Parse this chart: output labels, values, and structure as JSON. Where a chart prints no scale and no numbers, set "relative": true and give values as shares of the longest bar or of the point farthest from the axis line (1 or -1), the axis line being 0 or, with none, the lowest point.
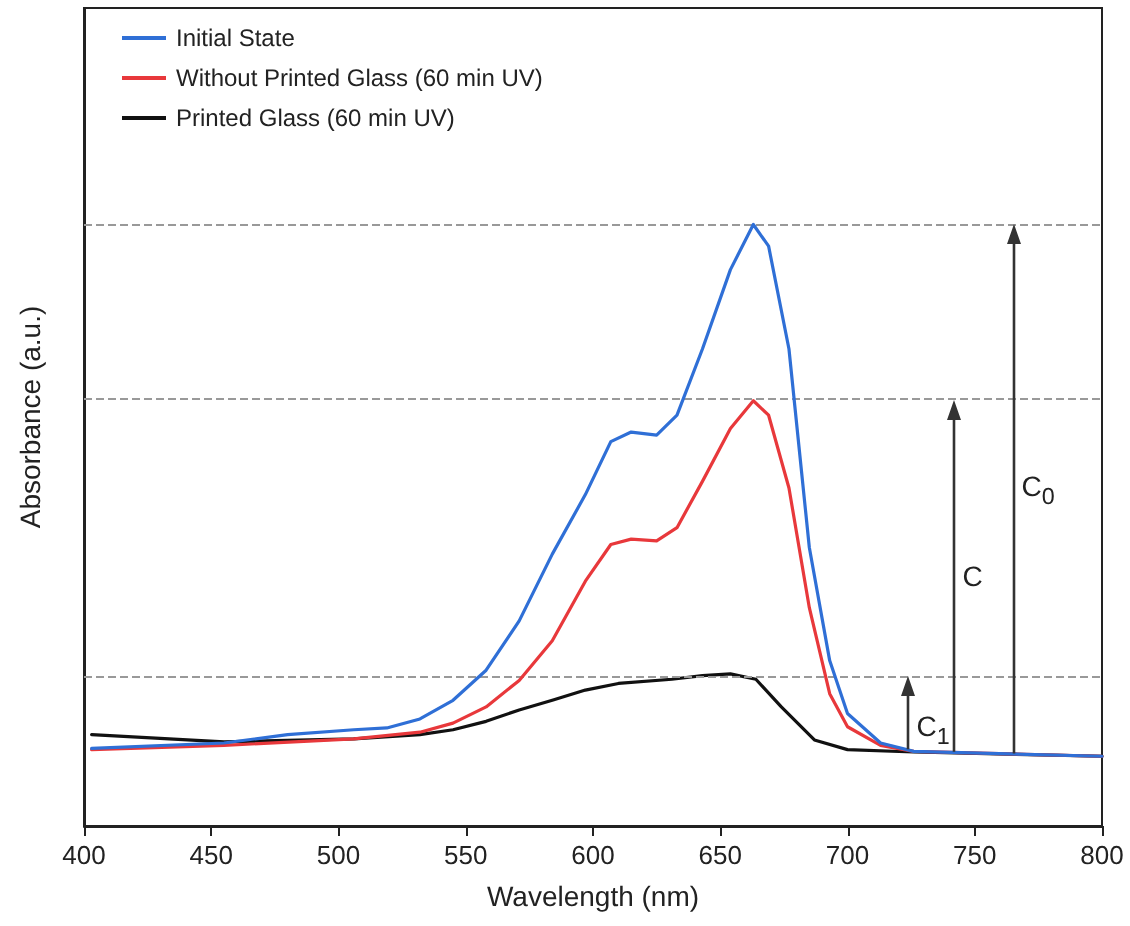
{
  "chart_data": {
    "type": "line",
    "relative": true,
    "xlabel": "Wavelength (nm)",
    "ylabel": "Absorbance (a.u.)",
    "xlim": [
      400,
      800
    ],
    "xticks": [
      400,
      450,
      500,
      550,
      600,
      650,
      700,
      750,
      800
    ],
    "tick_labels": "x",
    "grid": false,
    "legend": "top left",
    "marker": "none",
    "line_style": "solid",
    "series": [
      {
        "name": "Initial State",
        "color": "#2f6fd6",
        "x": [
          403,
          455,
          480,
          506,
          519,
          532,
          545,
          558,
          571,
          584,
          597,
          607,
          615,
          625,
          633,
          643,
          654,
          663,
          669,
          677,
          685,
          693,
          700,
          713,
          726,
          752,
          800
        ],
        "values": [
          0.129,
          0.138,
          0.152,
          0.16,
          0.163,
          0.178,
          0.209,
          0.259,
          0.341,
          0.452,
          0.551,
          0.639,
          0.655,
          0.65,
          0.683,
          0.793,
          0.925,
          1.0,
          0.964,
          0.793,
          0.463,
          0.275,
          0.187,
          0.138,
          0.124,
          0.121,
          0.116
        ]
      },
      {
        "name": "Without Printed Glass (60 min UV)",
        "color": "#e8383b",
        "x": [
          403,
          455,
          506,
          532,
          545,
          558,
          571,
          584,
          597,
          607,
          615,
          625,
          633,
          643,
          654,
          663,
          669,
          677,
          685,
          693,
          700,
          713,
          726,
          800
        ],
        "values": [
          0.127,
          0.134,
          0.145,
          0.156,
          0.171,
          0.198,
          0.242,
          0.308,
          0.407,
          0.468,
          0.477,
          0.474,
          0.496,
          0.573,
          0.661,
          0.707,
          0.683,
          0.562,
          0.363,
          0.22,
          0.165,
          0.134,
          0.124,
          0.116
        ]
      },
      {
        "name": "Printed Glass (60 min UV)",
        "color": "#111111",
        "x": [
          403,
          455,
          506,
          532,
          545,
          558,
          571,
          584,
          597,
          610,
          631,
          643,
          654,
          664,
          674,
          687,
          700,
          726,
          800
        ],
        "values": [
          0.152,
          0.14,
          0.145,
          0.152,
          0.16,
          0.174,
          0.193,
          0.209,
          0.226,
          0.237,
          0.244,
          0.25,
          0.253,
          0.244,
          0.198,
          0.143,
          0.127,
          0.123,
          0.116
        ]
      }
    ],
    "ref_lines": [
      {
        "axis": "y",
        "value": 1.0,
        "color": "#999999",
        "line_style": "dashed"
      },
      {
        "axis": "y",
        "value": 0.707,
        "color": "#999999",
        "line_style": "dashed"
      },
      {
        "axis": "y",
        "value": 0.248,
        "color": "#999999",
        "line_style": "dashed"
      }
    ],
    "annotations": [
      "C$_{0}$",
      "C",
      "C$_{1}$"
    ]
  }
}
